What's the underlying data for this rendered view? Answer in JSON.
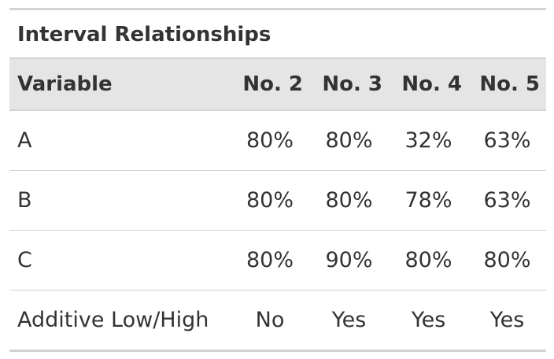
{
  "table": {
    "title": "Interval Relationships",
    "header": [
      "Variable",
      "No. 2",
      "No. 3",
      "No. 4",
      "No. 5"
    ],
    "rows": [
      [
        "A",
        "80%",
        "80%",
        "32%",
        "63%"
      ],
      [
        "B",
        "80%",
        "80%",
        "78%",
        "63%"
      ],
      [
        "C",
        "80%",
        "90%",
        "80%",
        "80%"
      ],
      [
        "Additive Low/High",
        "No",
        "Yes",
        "Yes",
        "Yes"
      ]
    ]
  }
}
